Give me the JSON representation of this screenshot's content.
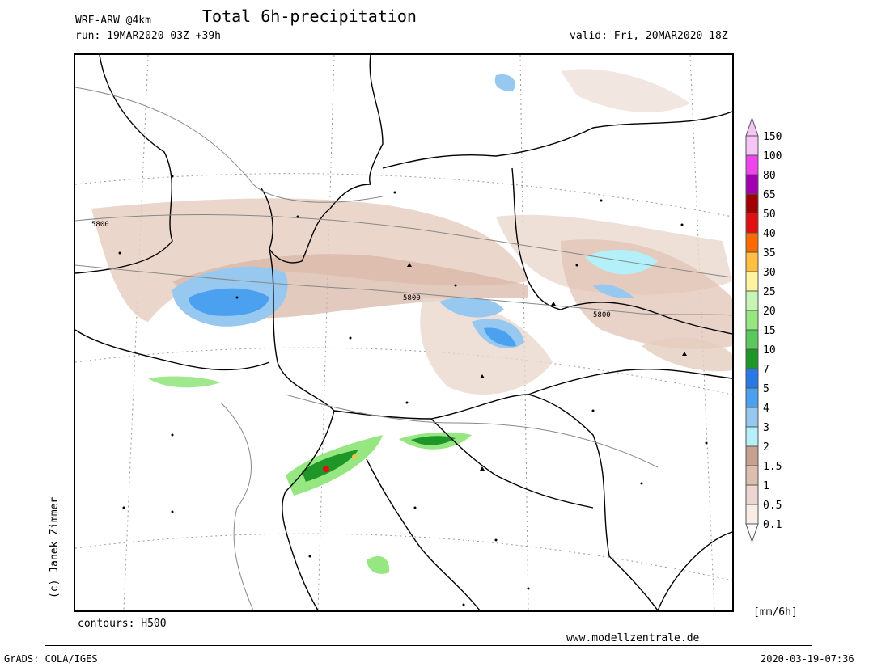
{
  "header": {
    "model": "WRF-ARW @4km",
    "title": "Total 6h-precipitation",
    "run": "run: 19MAR2020 03Z +39h",
    "valid": "valid: Fri, 20MAR2020 18Z"
  },
  "map": {
    "contour_labels": [
      "5800",
      "5800",
      "5800"
    ],
    "contours_note": "contours: H500",
    "credit": "(c) Janek Zimmer",
    "website": "www.modellzentrale.de"
  },
  "legend": {
    "unit": "[mm/6h]",
    "levels": [
      "150",
      "100",
      "80",
      "65",
      "50",
      "40",
      "35",
      "30",
      "25",
      "20",
      "15",
      "10",
      "7",
      "5",
      "4",
      "3",
      "2",
      "1.5",
      "1",
      "0.5",
      "0.1"
    ],
    "colors": [
      "#f5c6f5",
      "#ee44ee",
      "#a000b0",
      "#a00000",
      "#e01010",
      "#ff6a00",
      "#ffbf40",
      "#fff2a0",
      "#c8f5b4",
      "#96e682",
      "#5ac85a",
      "#1e9628",
      "#2878e6",
      "#4ca0f0",
      "#96c8f0",
      "#b4f0fa",
      "#c8a091",
      "#dcbeaf",
      "#ebd7cd",
      "#f8ece6"
    ]
  },
  "footer": {
    "grads": "GrADS: COLA/IGES",
    "timestamp": "2020-03-19-07:36"
  }
}
